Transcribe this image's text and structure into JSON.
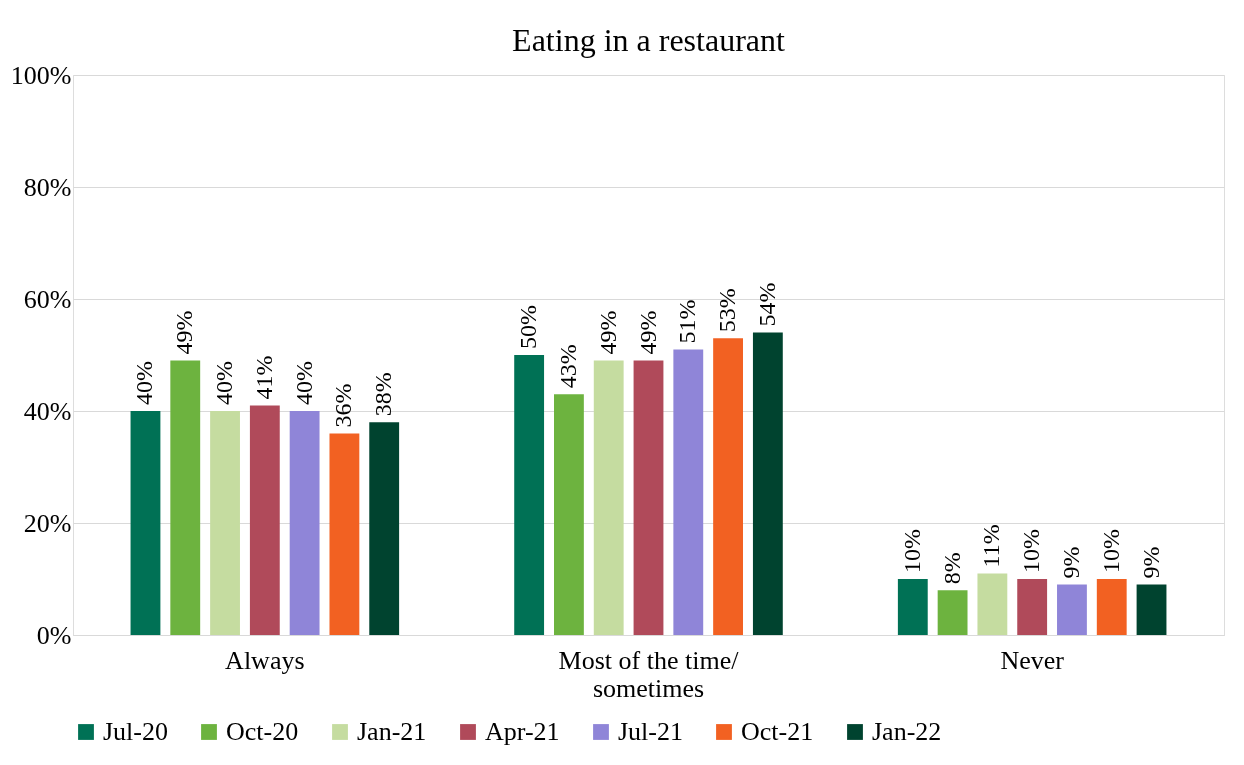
{
  "chart_data": {
    "type": "bar",
    "title": "Eating in a restaurant",
    "categories": [
      "Always",
      "Most of the time/\nsometimes",
      "Never"
    ],
    "series": [
      {
        "name": "Jul-20",
        "color": "#007155",
        "values": [
          40,
          50,
          10
        ],
        "value_labels": [
          "40%",
          "50%",
          "10%"
        ]
      },
      {
        "name": "Oct-20",
        "color": "#6db33f",
        "values": [
          49,
          43,
          8
        ],
        "value_labels": [
          "49%",
          "43%",
          "8%"
        ]
      },
      {
        "name": "Jan-21",
        "color": "#c5dca0",
        "values": [
          40,
          49,
          11
        ],
        "value_labels": [
          "40%",
          "49%",
          "11%"
        ]
      },
      {
        "name": "Apr-21",
        "color": "#b04a5a",
        "values": [
          41,
          49,
          10
        ],
        "value_labels": [
          "41%",
          "49%",
          "10%"
        ]
      },
      {
        "name": "Jul-21",
        "color": "#8f85d8",
        "values": [
          40,
          51,
          9
        ],
        "value_labels": [
          "40%",
          "51%",
          "9%"
        ]
      },
      {
        "name": "Oct-21",
        "color": "#f26122",
        "values": [
          36,
          53,
          10
        ],
        "value_labels": [
          "36%",
          "53%",
          "10%"
        ]
      },
      {
        "name": "Jan-22",
        "color": "#00432f",
        "values": [
          38,
          54,
          9
        ],
        "value_labels": [
          "38%",
          "54%",
          "9%"
        ]
      }
    ],
    "ylim": [
      0,
      100
    ],
    "yticks": [
      {
        "value": 0,
        "label": "0%"
      },
      {
        "value": 20,
        "label": "20%"
      },
      {
        "value": 40,
        "label": "40%"
      },
      {
        "value": 60,
        "label": "60%"
      },
      {
        "value": 80,
        "label": "80%"
      },
      {
        "value": 100,
        "label": "100%"
      }
    ],
    "grid": "y",
    "legend": "bottom"
  }
}
